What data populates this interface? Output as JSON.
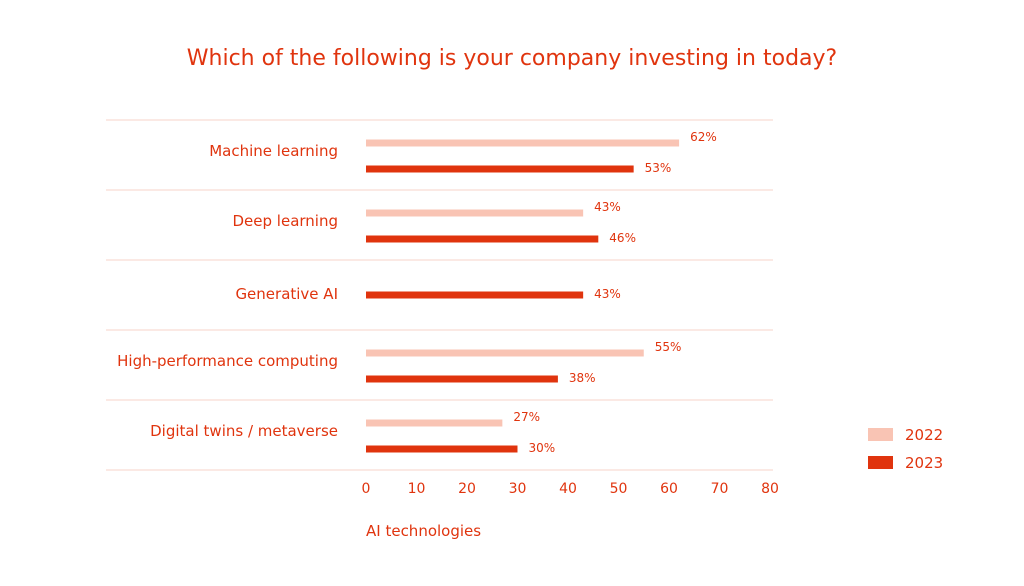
{
  "chart_data": {
    "type": "bar",
    "orientation": "horizontal",
    "title": "Which of the following is your company investing in today?",
    "xlabel": "AI technologies",
    "ylabel": "",
    "xlim": [
      0,
      80
    ],
    "ticks": [
      "0",
      "10",
      "20",
      "30",
      "40",
      "50",
      "60",
      "70",
      "80"
    ],
    "categories": [
      "Machine learning",
      "Deep learning",
      "Generative AI",
      "High-performance computing",
      "Digital twins / metaverse"
    ],
    "series": [
      {
        "name": "2022",
        "color": "#F9C4B4",
        "values": [
          62,
          43,
          null,
          55,
          27
        ]
      },
      {
        "name": "2023",
        "color": "#E0340E",
        "values": [
          53,
          46,
          43,
          38,
          30
        ]
      }
    ],
    "value_labels": {
      "2022": [
        "62%",
        "43%",
        "",
        "55%",
        "27%"
      ],
      "2023": [
        "53%",
        "46%",
        "43%",
        "38%",
        "30%"
      ]
    },
    "grid": false,
    "legend_position": "bottom-right",
    "text_color": "#E0340E",
    "separator_color": "#F7D3C8"
  }
}
